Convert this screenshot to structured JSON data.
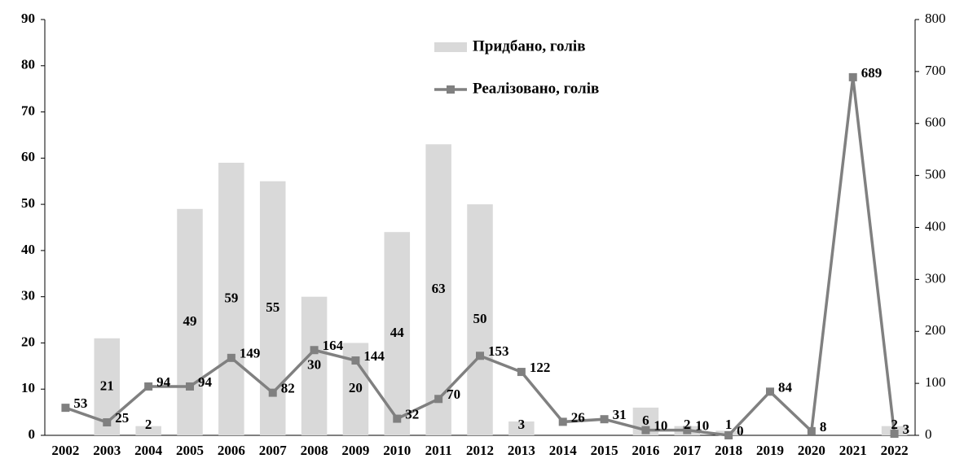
{
  "chart_data": {
    "type": "bar-line",
    "categories": [
      "2002",
      "2003",
      "2004",
      "2005",
      "2006",
      "2007",
      "2008",
      "2009",
      "2010",
      "2011",
      "2012",
      "2013",
      "2014",
      "2015",
      "2016",
      "2017",
      "2018",
      "2019",
      "2020",
      "2021",
      "2022"
    ],
    "series": [
      {
        "name": "Придбано, голів",
        "type": "bar",
        "color": "#d9d9d9",
        "axis": "y",
        "values": [
          null,
          21,
          2,
          49,
          59,
          55,
          30,
          20,
          44,
          63,
          50,
          3,
          null,
          null,
          6,
          2,
          1,
          null,
          null,
          null,
          2
        ]
      },
      {
        "name": "Реалізовано, голів",
        "type": "line",
        "color": "#808080",
        "axis": "y2",
        "values": [
          53,
          25,
          94,
          94,
          149,
          82,
          164,
          144,
          32,
          70,
          153,
          122,
          26,
          31,
          10,
          10,
          0,
          84,
          8,
          689,
          3
        ]
      }
    ],
    "ylim": [
      0,
      90
    ],
    "yticks": [
      0,
      10,
      20,
      30,
      40,
      50,
      60,
      70,
      80,
      90
    ],
    "y2lim": [
      0,
      800
    ],
    "y2ticks": [
      0,
      100,
      200,
      300,
      400,
      500,
      600,
      700,
      800
    ],
    "grid": false
  }
}
